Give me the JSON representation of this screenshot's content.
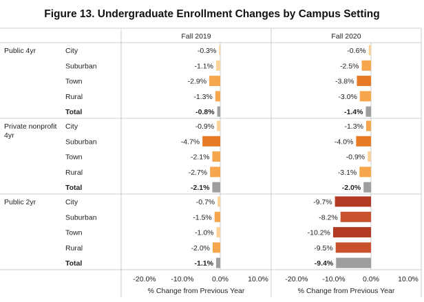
{
  "title": "Figure 13. Undergraduate Enrollment Changes by Campus Setting",
  "chart_data": {
    "type": "bar",
    "title": "Figure 13. Undergraduate Enrollment Changes by Campus Setting",
    "xlabel": "% Change from Previous Year",
    "xlim": [
      -20,
      10
    ],
    "x_ticks": [
      -20,
      -10,
      0,
      10
    ],
    "x_tick_labels": [
      "-20.0%",
      "-10.0%",
      "0.0%",
      "10.0%"
    ],
    "panels": [
      "Fall 2019",
      "Fall 2020"
    ],
    "groups": [
      {
        "name": "Public 4yr",
        "rows": [
          {
            "label": "City",
            "values": [
              -0.3,
              -0.6
            ],
            "value_labels": [
              "-0.3%",
              "-0.6%"
            ],
            "total": false
          },
          {
            "label": "Suburban",
            "values": [
              -1.1,
              -2.5
            ],
            "value_labels": [
              "-1.1%",
              "-2.5%"
            ],
            "total": false
          },
          {
            "label": "Town",
            "values": [
              -2.9,
              -3.8
            ],
            "value_labels": [
              "-2.9%",
              "-3.8%"
            ],
            "total": false
          },
          {
            "label": "Rural",
            "values": [
              -1.3,
              -3.0
            ],
            "value_labels": [
              "-1.3%",
              "-3.0%"
            ],
            "total": false
          },
          {
            "label": "Total",
            "values": [
              -0.8,
              -1.4
            ],
            "value_labels": [
              "-0.8%",
              "-1.4%"
            ],
            "total": true
          }
        ]
      },
      {
        "name": "Private nonprofit 4yr",
        "rows": [
          {
            "label": "City",
            "values": [
              -0.9,
              -1.3
            ],
            "value_labels": [
              "-0.9%",
              "-1.3%"
            ],
            "total": false
          },
          {
            "label": "Suburban",
            "values": [
              -4.7,
              -4.0
            ],
            "value_labels": [
              "-4.7%",
              "-4.0%"
            ],
            "total": false
          },
          {
            "label": "Town",
            "values": [
              -2.1,
              -0.9
            ],
            "value_labels": [
              "-2.1%",
              "-0.9%"
            ],
            "total": false
          },
          {
            "label": "Rural",
            "values": [
              -2.7,
              -3.1
            ],
            "value_labels": [
              "-2.7%",
              "-3.1%"
            ],
            "total": false
          },
          {
            "label": "Total",
            "values": [
              -2.1,
              -2.0
            ],
            "value_labels": [
              "-2.1%",
              "-2.0%"
            ],
            "total": true
          }
        ]
      },
      {
        "name": "Public 2yr",
        "rows": [
          {
            "label": "City",
            "values": [
              -0.7,
              -9.7
            ],
            "value_labels": [
              "-0.7%",
              "-9.7%"
            ],
            "total": false
          },
          {
            "label": "Suburban",
            "values": [
              -1.5,
              -8.2
            ],
            "value_labels": [
              "-1.5%",
              "-8.2%"
            ],
            "total": false
          },
          {
            "label": "Town",
            "values": [
              -1.0,
              -10.2
            ],
            "value_labels": [
              "-1.0%",
              "-10.2%"
            ],
            "total": false
          },
          {
            "label": "Rural",
            "values": [
              -2.0,
              -9.5
            ],
            "value_labels": [
              "-2.0%",
              "-9.5%"
            ],
            "total": false
          },
          {
            "label": "Total",
            "values": [
              -1.1,
              -9.4
            ],
            "value_labels": [
              "-1.1%",
              "-9.4%"
            ],
            "total": true
          }
        ]
      }
    ],
    "colors": {
      "total": "#9e9e9e",
      "light": "#fbd39a",
      "medium": "#f6a74d",
      "dark": "#e67a26",
      "deep": "#c8522b",
      "deepest": "#b23a23",
      "grid": "#cccccc",
      "text": "#222222"
    }
  }
}
